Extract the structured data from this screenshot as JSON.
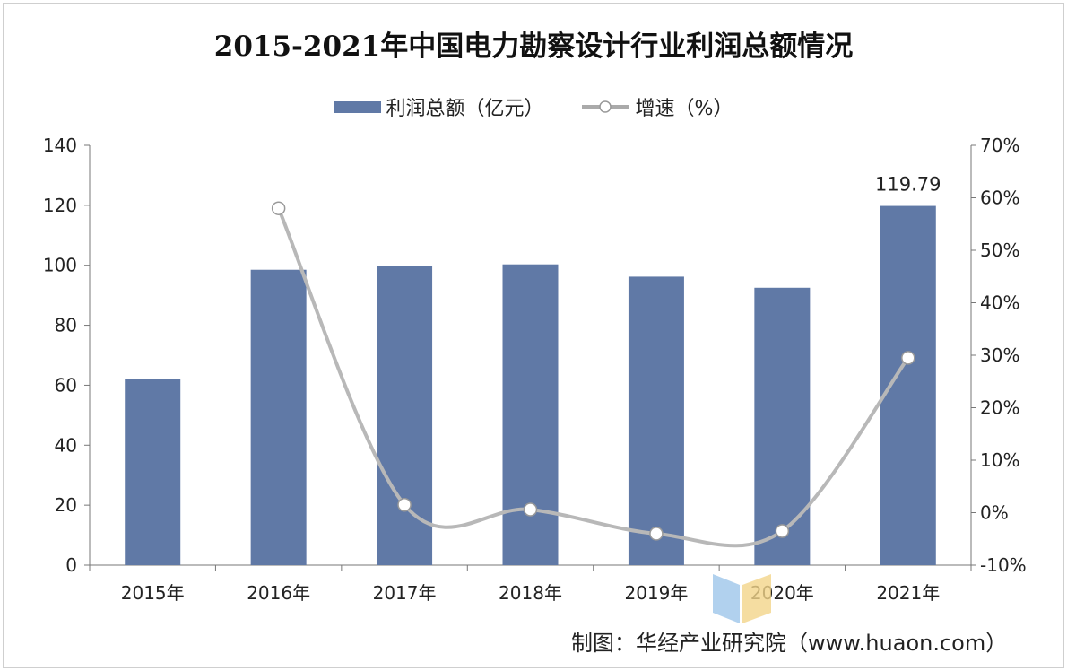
{
  "chart_data": {
    "type": "bar+line",
    "title": "2015-2021年中国电力勘察设计行业利润总额情况",
    "categories": [
      "2015年",
      "2016年",
      "2017年",
      "2018年",
      "2019年",
      "2020年",
      "2021年"
    ],
    "series": [
      {
        "name": "利润总额（亿元）",
        "type": "bar",
        "axis": "left",
        "values": [
          62,
          98.5,
          99.8,
          100.3,
          96.2,
          92.5,
          119.79
        ],
        "color": "#6079a6"
      },
      {
        "name": "增速（%）",
        "type": "line",
        "axis": "right",
        "values": [
          null,
          58,
          1.5,
          0.6,
          -4,
          -3.5,
          29.5
        ],
        "color": "#b8b8b8"
      }
    ],
    "data_labels": [
      {
        "category": "2021年",
        "text": "119.79"
      }
    ],
    "left_axis": {
      "range": [
        0,
        140
      ],
      "ticks": [
        "0",
        "20",
        "40",
        "60",
        "80",
        "100",
        "120",
        "140"
      ]
    },
    "right_axis": {
      "range": [
        -10,
        70
      ],
      "ticks": [
        "-10%",
        "0%",
        "10%",
        "20%",
        "30%",
        "40%",
        "50%",
        "60%",
        "70%"
      ]
    },
    "grid": false,
    "legend": "top"
  },
  "source": "制图：华经产业研究院（www.huaon.com）",
  "watermark": {
    "name": "华经产业研究院",
    "url": "www.huaon.com"
  }
}
